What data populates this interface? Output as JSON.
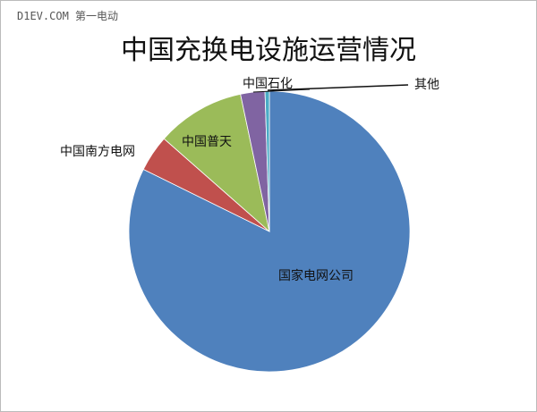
{
  "watermark": "D1EV.COM 第一电动",
  "chart_data": {
    "type": "pie",
    "title": "中国充换电设施运营情况",
    "categories": [
      "国家电网公司",
      "中国南方电网",
      "中国普天",
      "中国石化",
      "其他"
    ],
    "values": [
      82.3,
      4.2,
      10.2,
      2.8,
      0.5
    ],
    "colors": [
      "#4f81bd",
      "#c0504d",
      "#9bbb59",
      "#8064a2",
      "#4bacc6"
    ],
    "legend": "none, labels on/next to slices"
  }
}
